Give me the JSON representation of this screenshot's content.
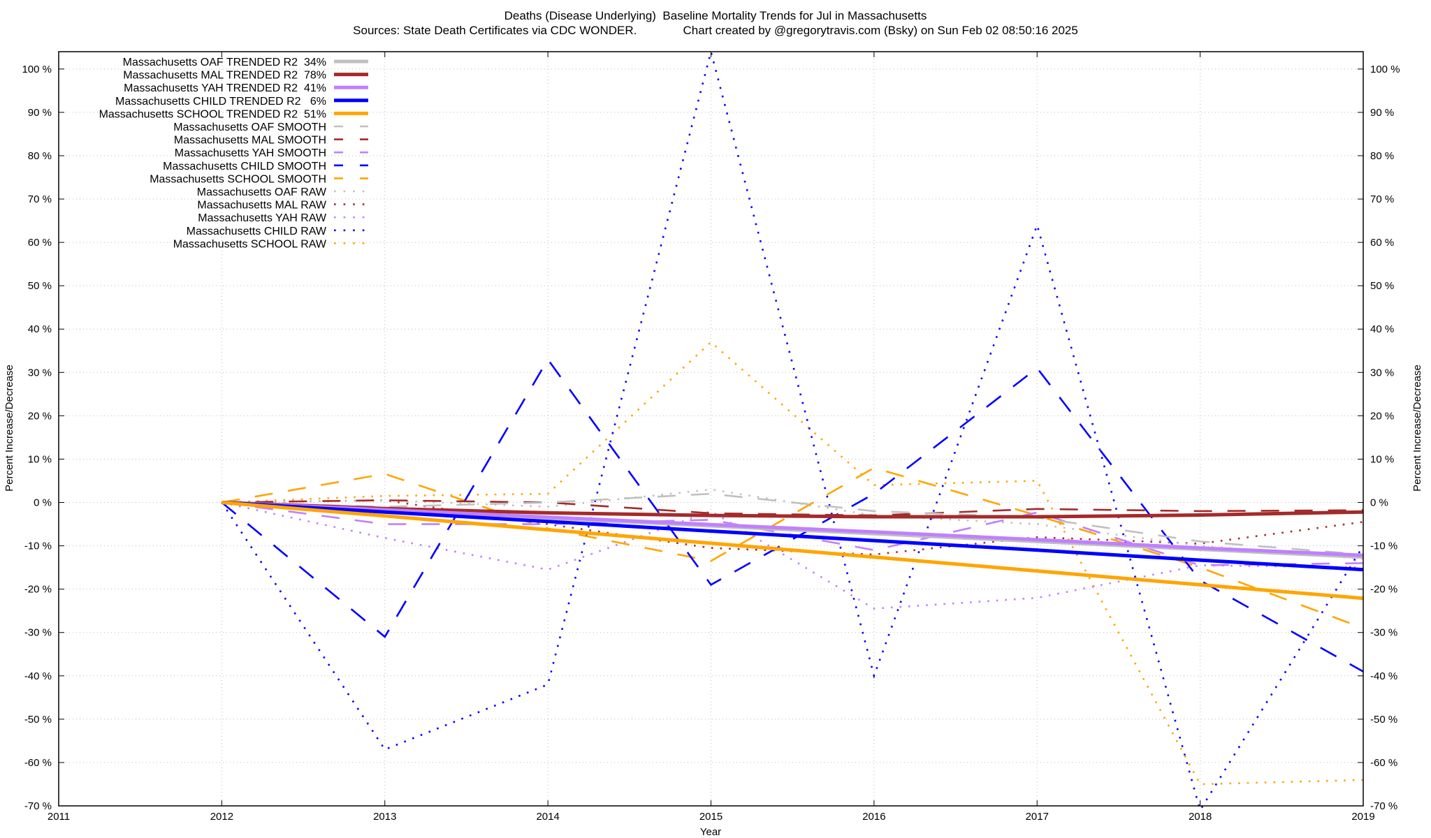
{
  "chart_data": {
    "type": "line",
    "title": "Deaths (Disease Underlying)  Baseline Mortality Trends for Jul in Massachusetts",
    "subtitle": "Sources: State Death Certificates via CDC WONDER.              Chart created by @gregorytravis.com (Bsky) on Sun Feb 02 08:50:16 2025",
    "xlabel": "Year",
    "ylabel": "Percent Increase/Decrease",
    "y2label": "Percent Increase/Decrease",
    "xlim": [
      2011,
      2019
    ],
    "ylim": [
      -70,
      104
    ],
    "grid": true,
    "legend_position": "top-left",
    "x_ticks": [
      "2011",
      "2012",
      "2013",
      "2014",
      "2015",
      "2016",
      "2017",
      "2018",
      "2019"
    ],
    "y_ticks": [
      "-70 %",
      "-60 %",
      "-50 %",
      "-40 %",
      "-30 %",
      "-20 %",
      "-10 %",
      "0 %",
      "10 %",
      "20 %",
      "30 %",
      "40 %",
      "50 %",
      "60 %",
      "70 %",
      "80 %",
      "90 %",
      "100 %"
    ],
    "y_tick_values": [
      -70,
      -60,
      -50,
      -40,
      -30,
      -20,
      -10,
      0,
      10,
      20,
      30,
      40,
      50,
      60,
      70,
      80,
      90,
      100
    ],
    "x": [
      2012,
      2013,
      2014,
      2015,
      2016,
      2017,
      2018,
      2019
    ],
    "series": [
      {
        "name": "Massachusetts OAF TRENDED R2  34%",
        "style": "trend",
        "color": "#c0c0c0",
        "values": [
          0,
          -1.8,
          -3.6,
          -5.4,
          -7.2,
          -9.0,
          -10.8,
          -12.6
        ]
      },
      {
        "name": "Massachusetts MAL TRENDED R2  78%",
        "style": "trend",
        "color": "#a52a2a",
        "values": [
          0,
          -1.4,
          -2.4,
          -3.0,
          -3.3,
          -3.3,
          -2.9,
          -2.2
        ]
      },
      {
        "name": "Massachusetts YAH TRENDED R2  41%",
        "style": "trend",
        "color": "#c080ff",
        "values": [
          0,
          -1.7,
          -3.4,
          -5.1,
          -6.8,
          -8.6,
          -10.5,
          -12.2
        ]
      },
      {
        "name": "Massachusetts CHILD TRENDED R2   6%",
        "style": "trend",
        "color": "#0000ff",
        "values": [
          0,
          -2.2,
          -4.4,
          -6.6,
          -8.8,
          -11.0,
          -13.3,
          -15.5
        ]
      },
      {
        "name": "Massachusetts SCHOOL TRENDED R2  51%",
        "style": "trend",
        "color": "#ffa500",
        "values": [
          0,
          -3.1,
          -6.3,
          -9.4,
          -12.6,
          -15.8,
          -19.0,
          -22.1
        ]
      },
      {
        "name": "Massachusetts OAF SMOOTH",
        "style": "smooth",
        "color": "#c0c0c0",
        "values": [
          0,
          -1,
          0,
          2,
          -2,
          -3.5,
          -9,
          -12
        ]
      },
      {
        "name": "Massachusetts MAL SMOOTH",
        "style": "smooth",
        "color": "#a52a2a",
        "values": [
          0,
          0.5,
          0,
          -2.5,
          -3,
          -1.5,
          -2,
          -1.8
        ]
      },
      {
        "name": "Massachusetts YAH SMOOTH",
        "style": "smooth",
        "color": "#c080ff",
        "values": [
          0,
          -5,
          -5,
          -4,
          -11,
          -2.3,
          -14.5,
          -14
        ]
      },
      {
        "name": "Massachusetts CHILD SMOOTH",
        "style": "smooth",
        "color": "#0000ff",
        "values": [
          0,
          -31,
          33,
          -19,
          2,
          31,
          -18,
          -39
        ]
      },
      {
        "name": "Massachusetts SCHOOL SMOOTH",
        "style": "smooth",
        "color": "#ffa500",
        "values": [
          0,
          6.6,
          -6,
          -13.5,
          8,
          -3,
          -15,
          -29
        ]
      },
      {
        "name": "Massachusetts OAF RAW",
        "style": "raw",
        "color": "#c0c0c0",
        "values": [
          0,
          0.5,
          -1,
          3,
          -3,
          -5,
          -10,
          -13
        ]
      },
      {
        "name": "Massachusetts MAL RAW",
        "style": "raw",
        "color": "#a52a2a",
        "values": [
          0,
          0.5,
          -5,
          -10.5,
          -12,
          -8,
          -9.5,
          -4.5
        ]
      },
      {
        "name": "Massachusetts YAH RAW",
        "style": "raw",
        "color": "#c080ff",
        "values": [
          0,
          -8.2,
          -15.5,
          -2,
          -24.5,
          -22,
          -14.5,
          -15
        ]
      },
      {
        "name": "Massachusetts CHILD RAW",
        "style": "raw",
        "color": "#0000ff",
        "values": [
          0,
          -57,
          -42,
          104,
          -40,
          64,
          -71,
          -10
        ]
      },
      {
        "name": "Massachusetts SCHOOL RAW",
        "style": "raw",
        "color": "#ffa500",
        "values": [
          0,
          1.5,
          2,
          37,
          4,
          5,
          -65,
          -64
        ]
      }
    ]
  }
}
